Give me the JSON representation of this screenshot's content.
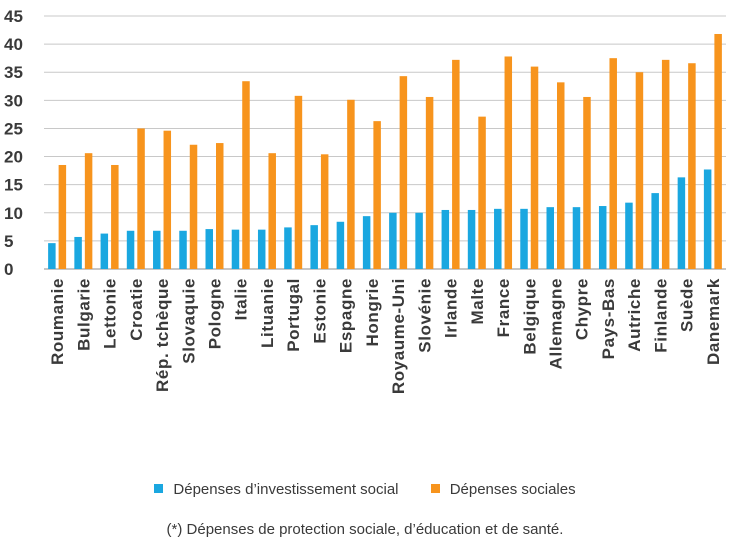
{
  "chart_data": {
    "type": "bar",
    "categories": [
      "Roumanie",
      "Bulgarie",
      "Lettonie",
      "Croatie",
      "Rép. tchèque",
      "Slovaquie",
      "Pologne",
      "Italie",
      "Lituanie",
      "Portugal",
      "Estonie",
      "Espagne",
      "Hongrie",
      "Royaume-Uni",
      "Slovénie",
      "Irlande",
      "Malte",
      "France",
      "Belgique",
      "Allemagne",
      "Chypre",
      "Pays-Bas",
      "Autriche",
      "Finlande",
      "Suède",
      "Danemark"
    ],
    "series": [
      {
        "name": "Dépenses d’investissement social",
        "color": "#1aa7e0",
        "values": [
          4.6,
          5.7,
          6.3,
          6.8,
          6.8,
          6.8,
          7.1,
          7.0,
          7.0,
          7.4,
          7.8,
          8.4,
          9.4,
          10.0,
          10.0,
          10.5,
          10.5,
          10.7,
          10.7,
          11.0,
          11.0,
          11.2,
          11.8,
          13.5,
          16.3,
          17.7
        ]
      },
      {
        "name": "Dépenses sociales",
        "color": "#f7941d",
        "values": [
          18.5,
          20.6,
          18.5,
          25.0,
          24.6,
          22.1,
          22.4,
          33.4,
          20.6,
          30.8,
          20.4,
          30.1,
          26.3,
          34.3,
          30.6,
          37.2,
          27.1,
          37.8,
          36.0,
          33.2,
          30.6,
          37.5,
          35.0,
          37.2,
          36.6,
          41.8
        ]
      }
    ],
    "yticks": [
      0,
      5,
      10,
      15,
      20,
      25,
      30,
      35,
      40,
      45
    ],
    "ylim": [
      0,
      45
    ],
    "grid": true,
    "legend_position": "bottom"
  },
  "footnote": "(*) Dépenses de protection sociale, d’éducation et de santé."
}
